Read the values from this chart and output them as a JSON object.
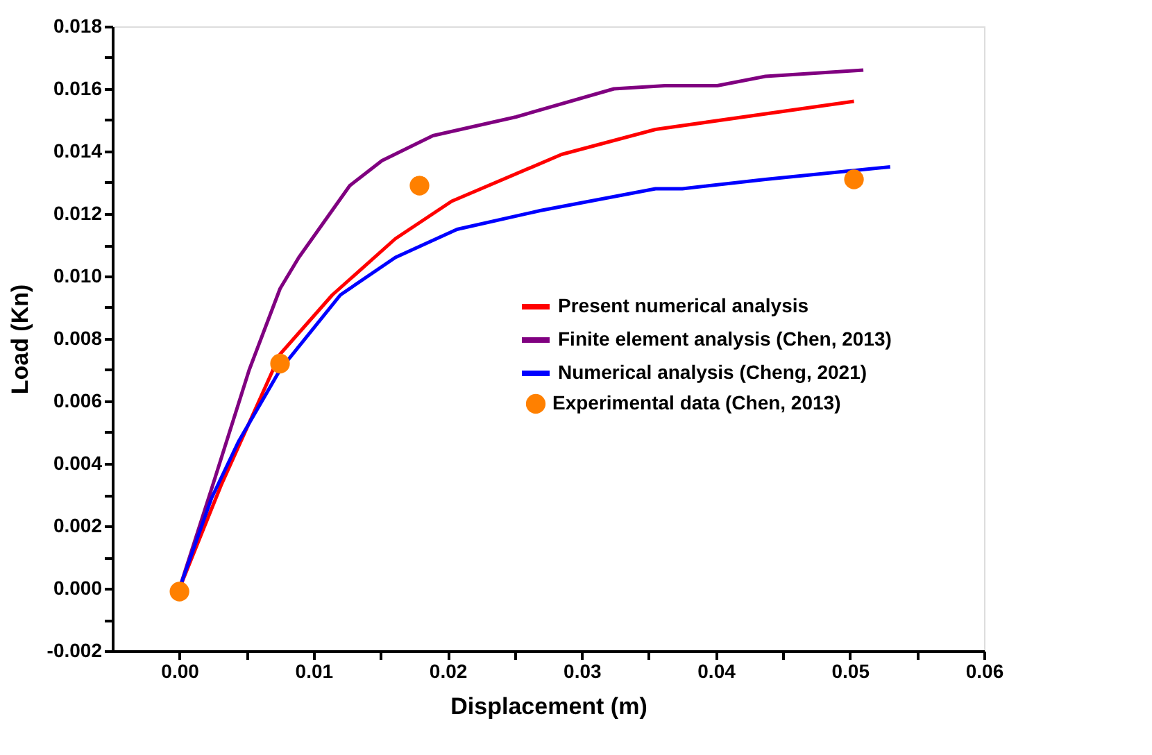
{
  "chart_data": {
    "type": "line",
    "xlabel": "Displacement (m)",
    "ylabel": "Load (Kn)",
    "xlim": [
      -0.005,
      0.06
    ],
    "ylim": [
      -0.002,
      0.018
    ],
    "xticks": [
      {
        "value": 0.0,
        "label": "0.00"
      },
      {
        "value": 0.005,
        "label": null
      },
      {
        "value": 0.01,
        "label": "0.01"
      },
      {
        "value": 0.015,
        "label": null
      },
      {
        "value": 0.02,
        "label": "0.02"
      },
      {
        "value": 0.025,
        "label": null
      },
      {
        "value": 0.03,
        "label": "0.03"
      },
      {
        "value": 0.035,
        "label": null
      },
      {
        "value": 0.04,
        "label": "0.04"
      },
      {
        "value": 0.045,
        "label": null
      },
      {
        "value": 0.05,
        "label": "0.05"
      },
      {
        "value": 0.055,
        "label": null
      },
      {
        "value": 0.06,
        "label": "0.06"
      }
    ],
    "yticks": [
      {
        "value": -0.002,
        "label": "-0.002"
      },
      {
        "value": -0.001,
        "label": null
      },
      {
        "value": 0.0,
        "label": "0.000"
      },
      {
        "value": 0.001,
        "label": null
      },
      {
        "value": 0.002,
        "label": "0.002"
      },
      {
        "value": 0.003,
        "label": null
      },
      {
        "value": 0.004,
        "label": "0.004"
      },
      {
        "value": 0.005,
        "label": null
      },
      {
        "value": 0.006,
        "label": "0.006"
      },
      {
        "value": 0.007,
        "label": null
      },
      {
        "value": 0.008,
        "label": "0.008"
      },
      {
        "value": 0.009,
        "label": null
      },
      {
        "value": 0.01,
        "label": "0.010"
      },
      {
        "value": 0.011,
        "label": null
      },
      {
        "value": 0.012,
        "label": "0.012"
      },
      {
        "value": 0.013,
        "label": null
      },
      {
        "value": 0.014,
        "label": "0.014"
      },
      {
        "value": 0.015,
        "label": null
      },
      {
        "value": 0.016,
        "label": "0.016"
      },
      {
        "value": 0.017,
        "label": null
      },
      {
        "value": 0.018,
        "label": "0.018"
      }
    ],
    "grid": false,
    "legend": "right",
    "line_style": "solid",
    "series": [
      {
        "name": "Present numerical analysis",
        "color": "#ff0000",
        "x": [
          0.0,
          0.0031,
          0.0075,
          0.0114,
          0.0161,
          0.0203,
          0.0285,
          0.0355,
          0.0503
        ],
        "values": [
          0.0,
          0.0033,
          0.0075,
          0.0094,
          0.0112,
          0.0124,
          0.0139,
          0.0147,
          0.0156
        ]
      },
      {
        "name": "Finite element analysis (Chen, 2013)",
        "color": "#800080",
        "x": [
          0.0,
          0.0024,
          0.0052,
          0.0075,
          0.0089,
          0.0127,
          0.0151,
          0.0189,
          0.0251,
          0.0324,
          0.0362,
          0.0401,
          0.0437,
          0.051
        ],
        "values": [
          0.0,
          0.0032,
          0.007,
          0.0096,
          0.0106,
          0.0129,
          0.0137,
          0.0145,
          0.0151,
          0.016,
          0.0161,
          0.0161,
          0.0164,
          0.0166
        ]
      },
      {
        "name": "Numerical analysis (Cheng, 2021)",
        "color": "#0000ff",
        "x": [
          0.0,
          0.0024,
          0.0044,
          0.0075,
          0.012,
          0.0161,
          0.0207,
          0.0269,
          0.0355,
          0.0375,
          0.0437,
          0.053
        ],
        "values": [
          0.0,
          0.0029,
          0.0047,
          0.007,
          0.0094,
          0.0106,
          0.0115,
          0.0121,
          0.0128,
          0.0128,
          0.0131,
          0.0135
        ]
      },
      {
        "name": "Experimental data (Chen, 2013)",
        "color": "#ff8000",
        "type": "scatter",
        "marker": "circle",
        "x": [
          0.0,
          0.0075,
          0.0179,
          0.0503
        ],
        "values": [
          -0.0001,
          0.0072,
          0.0129,
          0.0131
        ]
      }
    ]
  }
}
